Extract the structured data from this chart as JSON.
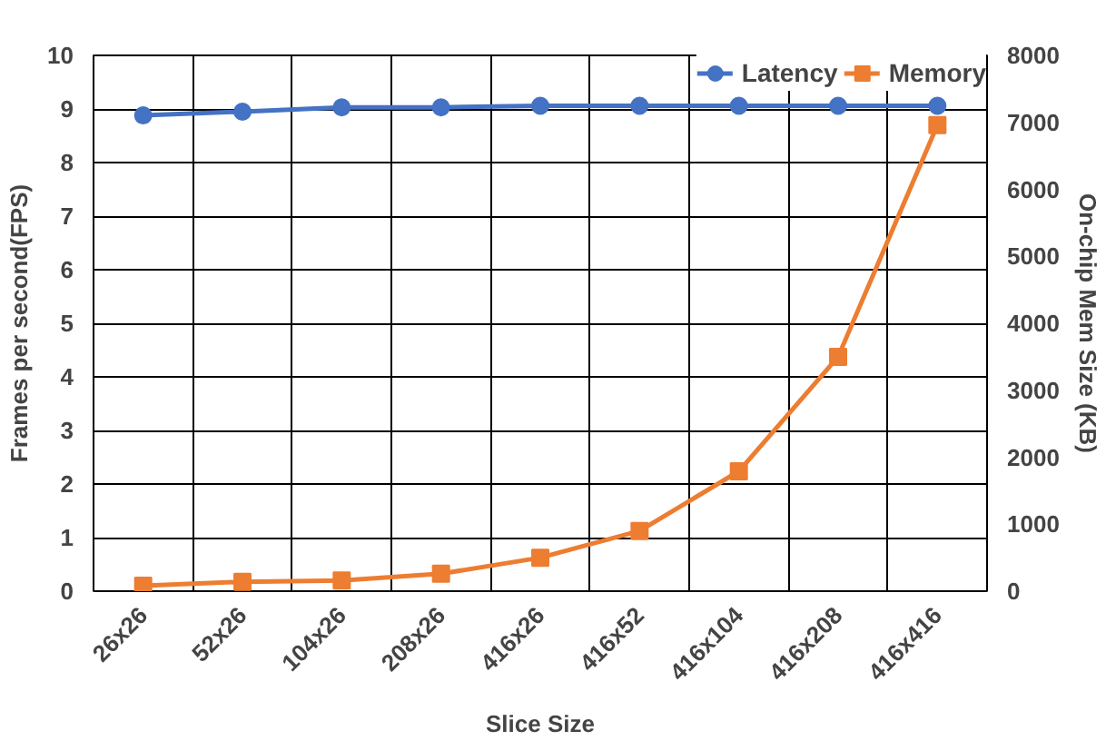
{
  "chart_data": {
    "type": "line",
    "xlabel": "Slice Size",
    "ylabel": "Frames per second(FPS)",
    "y2label": "On-chip Mem Size (KB)",
    "categories": [
      "26x26",
      "52x26",
      "104x26",
      "208x26",
      "416x26",
      "416x52",
      "416x104",
      "416x208",
      "416x416"
    ],
    "series": [
      {
        "name": "Latency",
        "color": "#4472c4",
        "marker": "circle",
        "values": [
          8.88,
          8.95,
          9.03,
          9.03,
          9.06,
          9.06,
          9.06,
          9.06,
          9.06
        ]
      },
      {
        "name": "Memory",
        "color": "#ed7d31",
        "marker": "square",
        "axis": "y2",
        "values": [
          80,
          140,
          160,
          260,
          500,
          900,
          1790,
          3500,
          6960
        ]
      }
    ],
    "ylim": [
      0,
      10
    ],
    "yticks": [
      0,
      1,
      2,
      3,
      4,
      5,
      6,
      7,
      8,
      9,
      10
    ],
    "y2lim": [
      0,
      8000
    ],
    "y2ticks": [
      0,
      1000,
      2000,
      3000,
      4000,
      5000,
      6000,
      7000,
      8000
    ],
    "grid": true,
    "legend": "top right"
  }
}
